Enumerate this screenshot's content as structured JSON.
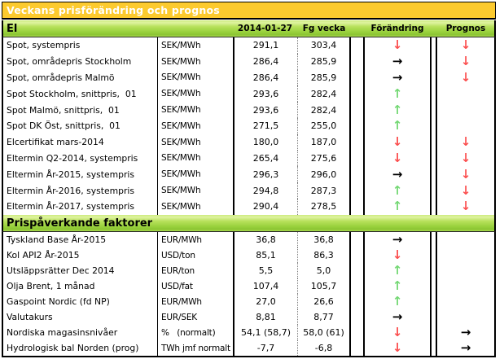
{
  "title": "Veckans prisförändring och prognos",
  "columns": {
    "date": "2014-01-27",
    "prev": "Fg vecka",
    "change": "Förändring",
    "forecast": "Prognos"
  },
  "colors": {
    "title_bar_orange": "#fcca2e",
    "section_band_green": "#9ad23e",
    "arrow_down_red": "#fb4f4f",
    "arrow_up_green": "#74d874",
    "arrow_right_black": "#000000"
  },
  "icons": {
    "down": "down-arrow-icon",
    "up": "up-arrow-icon",
    "right": "right-arrow-icon"
  },
  "sections": [
    {
      "name": "El",
      "rows": [
        {
          "label": "Spot, systempris",
          "unit": "SEK/MWh",
          "value": "291,1",
          "prev": "303,4",
          "change": "down",
          "forecast": "down"
        },
        {
          "label": "Spot, områdepris Stockholm",
          "unit": "SEK/MWh",
          "value": "286,4",
          "prev": "285,9",
          "change": "right",
          "forecast": "down"
        },
        {
          "label": "Spot, områdepris Malmö",
          "unit": "SEK/MWh",
          "value": "286,4",
          "prev": "285,9",
          "change": "right",
          "forecast": "down"
        },
        {
          "label": "Spot Stockholm, snittpris,  01",
          "unit": "SEK/MWh",
          "value": "293,6",
          "prev": "282,4",
          "change": "up",
          "forecast": "none"
        },
        {
          "label": "Spot Malmö, snittpris,  01",
          "unit": "SEK/MWh",
          "value": "293,6",
          "prev": "282,4",
          "change": "up",
          "forecast": "none"
        },
        {
          "label": "Spot DK Öst, snittpris,  01",
          "unit": "SEK/MWh",
          "value": "271,5",
          "prev": "255,0",
          "change": "up",
          "forecast": "none"
        },
        {
          "label": "Elcertifikat mars-2014",
          "unit": "SEK/MWh",
          "value": "180,0",
          "prev": "187,0",
          "change": "down",
          "forecast": "down"
        },
        {
          "label": "Eltermin Q2-2014, systempris",
          "unit": "SEK/MWh",
          "value": "265,4",
          "prev": "275,6",
          "change": "down",
          "forecast": "down"
        },
        {
          "label": "Eltermin År-2015, systempris",
          "unit": "SEK/MWh",
          "value": "296,3",
          "prev": "296,0",
          "change": "right",
          "forecast": "down"
        },
        {
          "label": "Eltermin År-2016, systempris",
          "unit": "SEK/MWh",
          "value": "294,8",
          "prev": "287,3",
          "change": "up",
          "forecast": "down"
        },
        {
          "label": "Eltermin År-2017, systempris",
          "unit": "SEK/MWh",
          "value": "290,4",
          "prev": "278,5",
          "change": "up",
          "forecast": "down"
        }
      ]
    },
    {
      "name": "Prispåverkande faktorer",
      "rows": [
        {
          "label": "Tyskland Base År-2015",
          "unit": "EUR/MWh",
          "value": "36,8",
          "prev": "36,8",
          "change": "right",
          "forecast": "none"
        },
        {
          "label": "Kol API2 År-2015",
          "unit": "USD/ton",
          "value": "85,1",
          "prev": "86,3",
          "change": "down",
          "forecast": "none"
        },
        {
          "label": "Utsläppsrätter Dec 2014",
          "unit": "EUR/ton",
          "value": "5,5",
          "prev": "5,0",
          "change": "up",
          "forecast": "none"
        },
        {
          "label": "Olja Brent, 1 månad",
          "unit": "USD/fat",
          "value": "107,4",
          "prev": "105,7",
          "change": "up",
          "forecast": "none"
        },
        {
          "label": "Gaspoint Nordic (fd NP)",
          "unit": "EUR/MWh",
          "value": "27,0",
          "prev": "26,6",
          "change": "up",
          "forecast": "none"
        },
        {
          "label": "Valutakurs",
          "unit": "EUR/SEK",
          "value": "8,81",
          "prev": "8,77",
          "change": "right",
          "forecast": "none"
        },
        {
          "label": "Nordiska magasinsnivåer",
          "unit": "%   (normalt)",
          "value": "54,1 (58,7)",
          "prev": "58,0 (61)",
          "change": "down",
          "forecast": "right"
        },
        {
          "label": "Hydrologisk bal Norden (prog)",
          "unit": "TWh jmf normalt",
          "value": "-7,7",
          "prev": "-6,8",
          "change": "down",
          "forecast": "right"
        }
      ]
    }
  ]
}
